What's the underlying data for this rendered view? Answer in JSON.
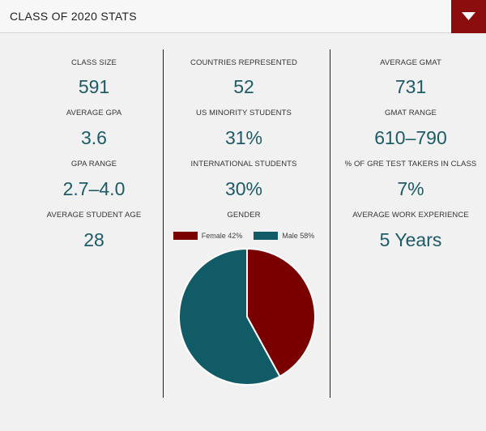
{
  "header": {
    "title": "CLASS OF 2020 STATS",
    "toggle_icon": "caret-down-icon",
    "accent_color": "#8b0d0d"
  },
  "columns": [
    {
      "stats": [
        {
          "label": "CLASS SIZE",
          "value": "591"
        },
        {
          "label": "AVERAGE GPA",
          "value": "3.6"
        },
        {
          "label": "GPA RANGE",
          "value": "2.7–4.0"
        },
        {
          "label": "AVERAGE STUDENT AGE",
          "value": "28"
        }
      ]
    },
    {
      "stats": [
        {
          "label": "COUNTRIES REPRESENTED",
          "value": "52"
        },
        {
          "label": "US MINORITY STUDENTS",
          "value": "31%"
        },
        {
          "label": "INTERNATIONAL STUDENTS",
          "value": "30%"
        },
        {
          "label": "GENDER",
          "value": ""
        }
      ]
    },
    {
      "stats": [
        {
          "label": "AVERAGE GMAT",
          "value": "731"
        },
        {
          "label": "GMAT RANGE",
          "value": "610–790"
        },
        {
          "label": "% OF GRE TEST TAKERS IN CLASS",
          "value": "7%"
        },
        {
          "label": "AVERAGE WORK EXPERIENCE",
          "value": "5 Years"
        }
      ]
    }
  ],
  "chart_data": {
    "type": "pie",
    "title": "GENDER",
    "legend_position": "top",
    "slices": [
      {
        "name": "Female",
        "legend_label": "Female 42%",
        "value": 42,
        "color": "#7a0000"
      },
      {
        "name": "Male",
        "legend_label": "Male 58%",
        "value": 58,
        "color": "#115b66"
      }
    ]
  }
}
